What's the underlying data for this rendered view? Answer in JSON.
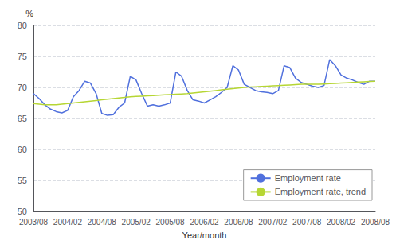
{
  "chart_data": {
    "type": "line",
    "xlabel": "Year/month",
    "ylabel": "%",
    "categories": [
      "2003/08",
      null,
      null,
      null,
      null,
      null,
      "2004/02",
      null,
      null,
      null,
      null,
      null,
      "2004/08",
      null,
      null,
      null,
      null,
      null,
      "2005/02",
      null,
      null,
      null,
      null,
      null,
      "2005/08",
      null,
      null,
      null,
      null,
      null,
      "2006/02",
      null,
      null,
      null,
      null,
      null,
      "2006/08",
      null,
      null,
      null,
      null,
      null,
      "2007/02",
      null,
      null,
      null,
      null,
      null,
      "2007/08",
      null,
      null,
      null,
      null,
      null,
      "2008/02",
      null,
      null,
      null,
      null,
      null,
      "2008/08"
    ],
    "series": [
      {
        "name": "Employment rate",
        "values": [
          69.0,
          68.2,
          67.2,
          66.5,
          66.1,
          65.9,
          66.3,
          68.5,
          69.5,
          71.0,
          70.7,
          69.0,
          65.8,
          65.5,
          65.6,
          66.8,
          67.5,
          71.8,
          71.2,
          69.0,
          67.0,
          67.2,
          67.0,
          67.2,
          67.5,
          72.5,
          71.8,
          69.5,
          68.0,
          67.8,
          67.5,
          68.0,
          68.5,
          69.2,
          70.0,
          73.5,
          72.8,
          70.5,
          70.0,
          69.5,
          69.3,
          69.2,
          69.0,
          69.5,
          73.5,
          73.2,
          71.5,
          70.8,
          70.5,
          70.2,
          70.0,
          70.3,
          74.5,
          73.5,
          72.0,
          71.5,
          71.2,
          70.8,
          70.5,
          71.0,
          71.0
        ]
      },
      {
        "name": "Employment rate, trend",
        "values": [
          67.4,
          67.3,
          67.2,
          67.2,
          67.2,
          67.3,
          67.4,
          67.5,
          67.6,
          67.7,
          67.8,
          67.9,
          68.0,
          68.1,
          68.2,
          68.3,
          68.4,
          68.5,
          68.55,
          68.6,
          68.65,
          68.7,
          68.75,
          68.8,
          68.85,
          68.9,
          68.95,
          69.0,
          69.1,
          69.2,
          69.3,
          69.4,
          69.5,
          69.6,
          69.7,
          69.8,
          69.9,
          70.0,
          70.05,
          70.1,
          70.15,
          70.2,
          70.25,
          70.3,
          70.35,
          70.4,
          70.45,
          70.5,
          70.5,
          70.5,
          70.5,
          70.55,
          70.6,
          70.65,
          70.7,
          70.75,
          70.8,
          70.85,
          70.9,
          70.95,
          71.0
        ]
      }
    ],
    "ylim": [
      50,
      80
    ],
    "yticks": [
      50,
      55,
      60,
      65,
      70,
      75,
      80
    ],
    "grid": true,
    "legend": "lower right"
  }
}
